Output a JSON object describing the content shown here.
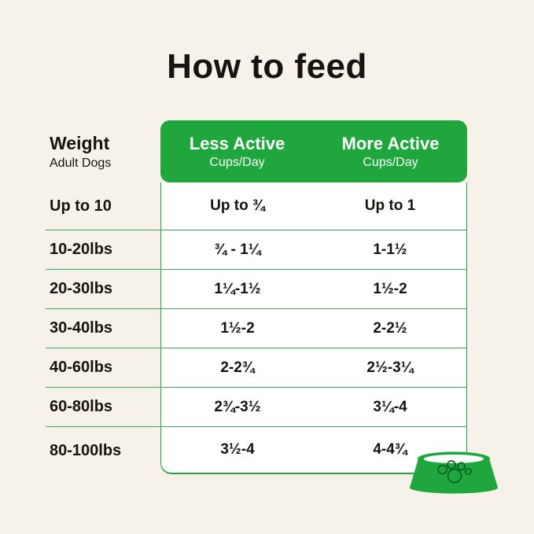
{
  "page": {
    "title": "How to feed",
    "background": "#f6f2ea"
  },
  "colors": {
    "green": "#1fa73d",
    "separator": "#44a263",
    "text": "#17130e",
    "header_text": "#ffffff",
    "bowl_inner": "#ffffff",
    "paw_outline": "#0a5f22"
  },
  "table": {
    "weight_header": {
      "title": "Weight",
      "subtitle": "Adult Dogs"
    },
    "columns": [
      {
        "label": "Less Active",
        "sublabel": "Cups/Day"
      },
      {
        "label": "More Active",
        "sublabel": "Cups/Day"
      }
    ]
  },
  "chart_data": {
    "type": "table",
    "title": "How to feed",
    "columns": [
      "Weight (Adult Dogs)",
      "Less Active Cups/Day",
      "More Active Cups/Day"
    ],
    "rows": [
      {
        "weight": "Up to 10",
        "less_active": "Up to ¾",
        "more_active": "Up to 1"
      },
      {
        "weight": "10-20lbs",
        "less_active": "¾ - 1¼",
        "more_active": "1-1½"
      },
      {
        "weight": "20-30lbs",
        "less_active": "1¼-1½",
        "more_active": "1½-2"
      },
      {
        "weight": "30-40lbs",
        "less_active": "1½-2",
        "more_active": "2-2½"
      },
      {
        "weight": "40-60lbs",
        "less_active": "2-2¾",
        "more_active": "2½-3¼"
      },
      {
        "weight": "60-80lbs",
        "less_active": "2¾-3½",
        "more_active": "3¼-4"
      },
      {
        "weight": "80-100lbs",
        "less_active": "3½-4",
        "more_active": "4-4¾"
      }
    ]
  },
  "icons": {
    "bowl": "dog-bowl-icon",
    "paw": "paw-print-icon"
  }
}
